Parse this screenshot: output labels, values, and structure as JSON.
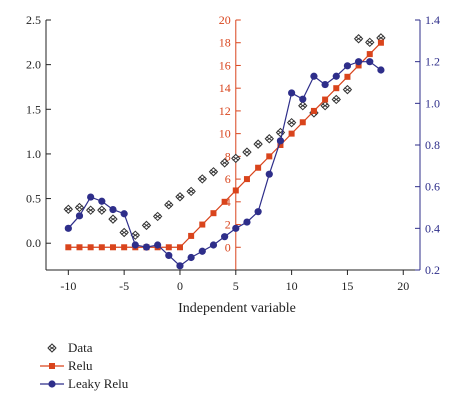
{
  "chart_data": {
    "type": "line",
    "title": "",
    "xlabel": "Independent variable",
    "x_ticks": [
      "-10",
      "-5",
      "0",
      "5",
      "10",
      "15",
      "20"
    ],
    "xlim": [
      -12,
      21.5
    ],
    "axes": {
      "left": {
        "ylim": [
          -0.3,
          2.5
        ],
        "ticks": [
          "0.0",
          "0.5",
          "1.0",
          "1.5",
          "2.0",
          "2.5"
        ],
        "color": "#222222"
      },
      "middle": {
        "ylim": [
          -2,
          20
        ],
        "ticks": [
          "0",
          "2",
          "4",
          "6",
          "8",
          "10",
          "12",
          "14",
          "16",
          "18",
          "20"
        ],
        "position_x": 5,
        "color": "#d9441c"
      },
      "right": {
        "ylim": [
          0.2,
          1.4
        ],
        "ticks": [
          "0.2",
          "0.4",
          "0.6",
          "0.8",
          "1.0",
          "1.2",
          "1.4"
        ],
        "color": "#2e2e8a"
      }
    },
    "grid": false,
    "legend_position": "bottom-left",
    "series": [
      {
        "name": "Data",
        "axis": "left",
        "marker": "diamond-cross",
        "line": false,
        "color": "#333333",
        "x": [
          -10,
          -9,
          -8,
          -7,
          -6,
          -5,
          -4,
          -3,
          -2,
          -1,
          0,
          1,
          2,
          3,
          4,
          5,
          6,
          7,
          8,
          9,
          10,
          11,
          12,
          13,
          14,
          15,
          16,
          17,
          18
        ],
        "y": [
          0.38,
          0.4,
          0.37,
          0.37,
          0.27,
          0.12,
          0.09,
          0.2,
          0.3,
          0.43,
          0.52,
          0.58,
          0.72,
          0.8,
          0.9,
          0.95,
          1.02,
          1.11,
          1.17,
          1.24,
          1.35,
          1.54,
          1.46,
          1.54,
          1.61,
          1.72,
          2.29,
          2.25,
          2.3
        ]
      },
      {
        "name": "Relu",
        "axis": "middle",
        "marker": "square",
        "line": true,
        "color": "#d9441c",
        "x": [
          -10,
          -9,
          -8,
          -7,
          -6,
          -5,
          -4,
          -3,
          -2,
          -1,
          0,
          1,
          2,
          3,
          4,
          5,
          6,
          7,
          8,
          9,
          10,
          11,
          12,
          13,
          14,
          15,
          16,
          17,
          18
        ],
        "y": [
          0,
          0,
          0,
          0,
          0,
          0,
          0,
          0,
          0,
          0,
          0,
          1,
          2,
          3,
          4,
          5,
          6,
          7,
          8,
          9,
          10,
          11,
          12,
          13,
          14,
          15,
          16,
          17,
          18
        ]
      },
      {
        "name": "Leaky Relu",
        "axis": "right",
        "marker": "circle",
        "line": true,
        "color": "#2e2e8a",
        "x": [
          -10,
          -9,
          -8,
          -7,
          -6,
          -5,
          -4,
          -3,
          -2,
          -1,
          0,
          1,
          2,
          3,
          4,
          5,
          6,
          7,
          8,
          9,
          10,
          11,
          12,
          13,
          14,
          15,
          16,
          17,
          18
        ],
        "y": [
          0.4,
          0.46,
          0.55,
          0.53,
          0.49,
          0.47,
          0.32,
          0.31,
          0.32,
          0.27,
          0.22,
          0.26,
          0.29,
          0.32,
          0.36,
          0.4,
          0.43,
          0.48,
          0.66,
          0.82,
          1.05,
          1.02,
          1.13,
          1.09,
          1.13,
          1.18,
          1.2,
          1.2,
          1.16
        ]
      }
    ]
  },
  "legend": {
    "items": [
      {
        "label": "Data"
      },
      {
        "label": "Relu"
      },
      {
        "label": "Leaky Relu"
      }
    ]
  }
}
